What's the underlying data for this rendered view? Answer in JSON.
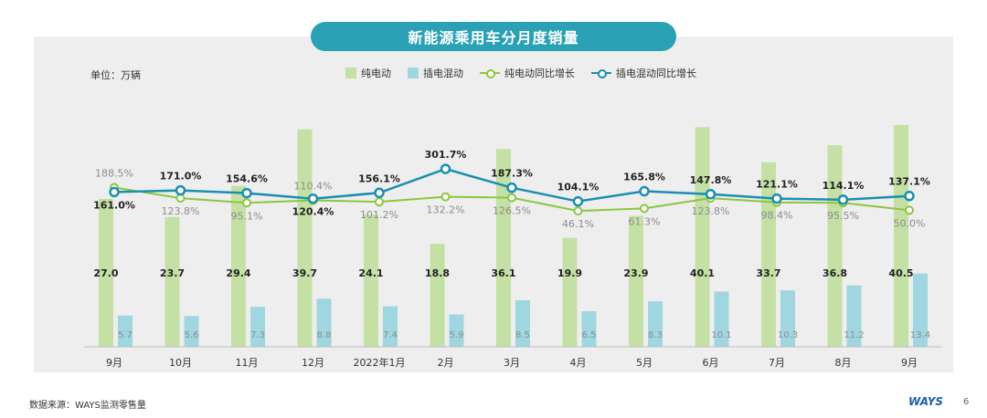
{
  "title": "新能源乘用车分月度销量",
  "unit_label": "单位：万辆",
  "source": "数据来源：WAYS监测零售量",
  "brand": "WAYS",
  "page_number": "6",
  "colors": {
    "bev_bar": "#c5e0a5",
    "phev_bar": "#9fd6e0",
    "bev_line": "#8cc63f",
    "phev_line": "#1b8fb0",
    "title_bg": "#2aa1b5",
    "panel_bg": "#eeeeee"
  },
  "chart_data": {
    "type": "bar+line",
    "categories": [
      "9月",
      "10月",
      "11月",
      "12月",
      "2022年1月",
      "2月",
      "3月",
      "4月",
      "5月",
      "6月",
      "7月",
      "8月",
      "9月"
    ],
    "series": [
      {
        "name": "纯电动",
        "type": "bar",
        "values": [
          27.0,
          23.7,
          29.4,
          39.7,
          24.1,
          18.8,
          36.1,
          19.9,
          23.9,
          40.1,
          33.7,
          36.8,
          40.5
        ]
      },
      {
        "name": "插电混动",
        "type": "bar",
        "values": [
          5.7,
          5.6,
          7.3,
          8.8,
          7.4,
          5.9,
          8.5,
          6.5,
          8.3,
          10.1,
          10.3,
          11.2,
          13.4
        ]
      },
      {
        "name": "纯电动同比增长",
        "type": "line",
        "values": [
          188.5,
          123.8,
          95.1,
          110.4,
          101.2,
          132.2,
          126.5,
          46.1,
          61.3,
          123.8,
          98.4,
          95.5,
          50.0
        ]
      },
      {
        "name": "插电混动同比增长",
        "type": "line",
        "values": [
          161.0,
          171.0,
          154.6,
          120.4,
          156.1,
          301.7,
          187.3,
          104.1,
          165.8,
          147.8,
          121.1,
          114.1,
          137.1
        ]
      }
    ],
    "bar_label_text": [
      "27.0",
      "23.7",
      "29.4",
      "39.7",
      "24.1",
      "18.8",
      "36.1",
      "19.9",
      "23.9",
      "40.1",
      "33.7",
      "36.8",
      "40.5"
    ],
    "phev_label_text": [
      "5.7",
      "5.6",
      "7.3",
      "8.8",
      "7.4",
      "5.9",
      "8.5",
      "6.5",
      "8.3",
      "10.1",
      "10.3",
      "11.2",
      "13.4"
    ],
    "bev_growth_text": [
      "188.5%",
      "123.8%",
      "95.1%",
      "110.4%",
      "101.2%",
      "132.2%",
      "126.5%",
      "46.1%",
      "61.3%",
      "123.8%",
      "98.4%",
      "95.5%",
      "50.0%"
    ],
    "phev_growth_text": [
      "161.0%",
      "171.0%",
      "154.6%",
      "120.4%",
      "156.1%",
      "301.7%",
      "187.3%",
      "104.1%",
      "165.8%",
      "147.8%",
      "121.1%",
      "114.1%",
      "137.1%"
    ],
    "grid": false,
    "legend_position": "top"
  }
}
